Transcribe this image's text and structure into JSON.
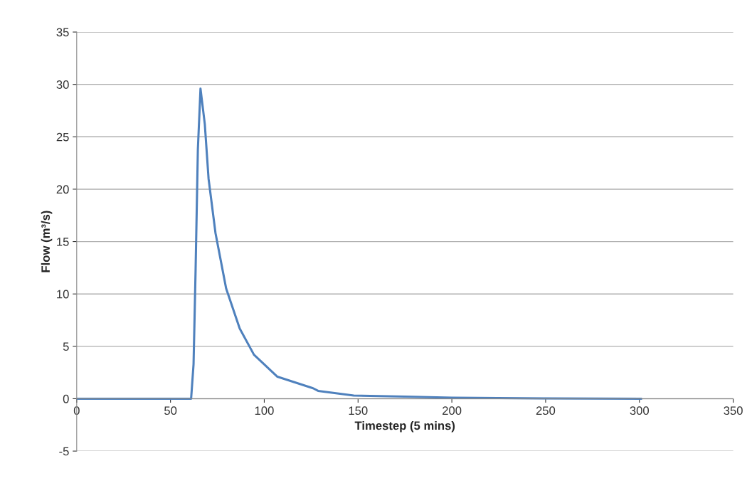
{
  "chart_data": {
    "type": "line",
    "xlabel": "Timestep (5 mins)",
    "ylabel": "Flow (m³/s)",
    "xlim": [
      0,
      350
    ],
    "xticks": [
      0,
      50,
      100,
      150,
      200,
      250,
      300,
      350
    ],
    "ylim": [
      -5,
      35
    ],
    "yticks": [
      -5,
      0,
      5,
      10,
      15,
      20,
      25,
      30,
      35
    ],
    "grid": "y",
    "marker": "none",
    "line_style": "solid",
    "series": [
      {
        "color": "#4f81bd",
        "x": [
          0,
          61,
          62.3,
          63.4,
          64.6,
          66,
          68.3,
          70.3,
          74,
          79.7,
          86.9,
          94.5,
          107,
          126,
          128.7,
          147.7,
          175,
          200,
          250,
          301
        ],
        "values": [
          0,
          0,
          3.3,
          12.4,
          23.8,
          29.6,
          26.2,
          21,
          15.8,
          10.5,
          6.7,
          4.2,
          2.1,
          1.0,
          0.75,
          0.3,
          0.2,
          0.1,
          0.03,
          0
        ]
      }
    ]
  }
}
